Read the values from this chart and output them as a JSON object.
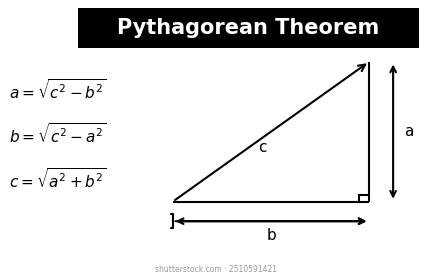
{
  "title": "Pythagorean Theorem",
  "title_bg": "#000000",
  "title_color": "#ffffff",
  "title_fontsize": 15,
  "bg_color": "#ffffff",
  "line_color": "#000000",
  "line_width": 1.5,
  "font_color": "#000000",
  "label_fontsize": 10,
  "formula_fontsize": 11,
  "watermark": "shutterstock.com · 2510591421",
  "triangle": {
    "BL": [
      0.4,
      0.28
    ],
    "BR": [
      0.855,
      0.28
    ],
    "TR": [
      0.855,
      0.78
    ]
  },
  "formulas": [
    [
      "a = \\sqrt{c^2 - b^2}",
      0.68
    ],
    [
      "b = \\sqrt{c^2 - a^2}",
      0.52
    ],
    [
      "c = \\sqrt{a^2 + b^2}",
      0.36
    ]
  ]
}
